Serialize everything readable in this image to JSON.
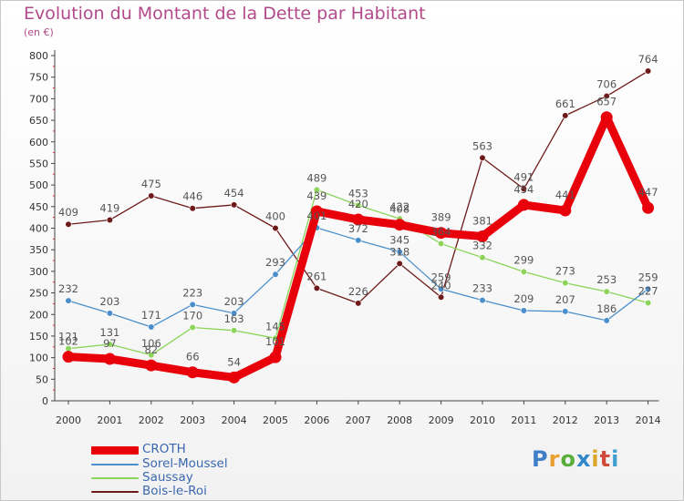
{
  "title": "Evolution du Montant de la Dette par Habitant",
  "unit": "(en €)",
  "logo": {
    "parts": [
      "P",
      "r",
      "o",
      "x",
      "i",
      "t",
      "i"
    ]
  },
  "chart_data": {
    "type": "line",
    "title": "Evolution du Montant de la Dette par Habitant",
    "ylabel": "(en €)",
    "xlabel": "",
    "ylim": [
      0,
      800
    ],
    "yticks": [
      0,
      50,
      100,
      150,
      200,
      250,
      300,
      350,
      400,
      450,
      500,
      550,
      600,
      650,
      700,
      750,
      800
    ],
    "categories": [
      "2000",
      "2001",
      "2002",
      "2003",
      "2004",
      "2005",
      "2006",
      "2007",
      "2008",
      "2009",
      "2010",
      "2011",
      "2012",
      "2013",
      "2014"
    ],
    "grid": false,
    "legend": "bottom-left",
    "series": [
      {
        "name": "CROTH",
        "color": "#e8000b",
        "values": [
          102,
          97,
          82,
          66,
          54,
          101,
          439,
          420,
          408,
          389,
          381,
          454,
          441,
          657,
          447
        ]
      },
      {
        "name": "Sorel-Moussel",
        "color": "#4a8fcb",
        "values": [
          232,
          203,
          171,
          223,
          203,
          293,
          401,
          372,
          345,
          259,
          233,
          209,
          207,
          186,
          259
        ]
      },
      {
        "name": "Saussay",
        "color": "#8cd45a",
        "values": [
          121,
          131,
          106,
          170,
          163,
          145,
          489,
          453,
          422,
          364,
          332,
          299,
          273,
          253,
          227
        ]
      },
      {
        "name": "Bois-le-Roi",
        "color": "#6e1a1a",
        "values": [
          409,
          419,
          475,
          446,
          454,
          400,
          261,
          226,
          318,
          240,
          563,
          491,
          661,
          706,
          764
        ]
      }
    ]
  }
}
